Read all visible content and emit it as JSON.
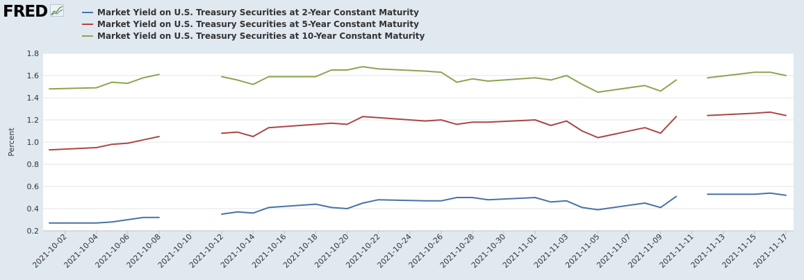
{
  "logo": {
    "text": "FRED",
    "icon": "fred-chart-icon"
  },
  "colors": {
    "background": "#e1e9f0",
    "plot": "#ffffff",
    "grid": "#e6e6e6"
  },
  "chart_data": {
    "type": "line",
    "ylabel": "Percent",
    "ylim": [
      0.2,
      1.8
    ],
    "yticks": [
      "0.2",
      "0.4",
      "0.6",
      "0.8",
      "1.0",
      "1.2",
      "1.4",
      "1.6",
      "1.8"
    ],
    "xlim": [
      "2021-10-01",
      "2021-11-17"
    ],
    "xticks": [
      "2021-10-02",
      "2021-10-04",
      "2021-10-06",
      "2021-10-08",
      "2021-10-10",
      "2021-10-12",
      "2021-10-14",
      "2021-10-16",
      "2021-10-18",
      "2021-10-20",
      "2021-10-22",
      "2021-10-24",
      "2021-10-26",
      "2021-10-28",
      "2021-10-30",
      "2021-11-01",
      "2021-11-03",
      "2021-11-05",
      "2021-11-07",
      "2021-11-09",
      "2021-11-11",
      "2021-11-13",
      "2021-11-15",
      "2021-11-17"
    ],
    "grid": true,
    "legend_position": "top",
    "x": [
      "2021-10-01",
      "2021-10-04",
      "2021-10-05",
      "2021-10-06",
      "2021-10-07",
      "2021-10-08",
      "2021-10-11",
      "2021-10-12",
      "2021-10-13",
      "2021-10-14",
      "2021-10-15",
      "2021-10-18",
      "2021-10-19",
      "2021-10-20",
      "2021-10-21",
      "2021-10-22",
      "2021-10-25",
      "2021-10-26",
      "2021-10-27",
      "2021-10-28",
      "2021-10-29",
      "2021-11-01",
      "2021-11-02",
      "2021-11-03",
      "2021-11-04",
      "2021-11-05",
      "2021-11-08",
      "2021-11-09",
      "2021-11-10",
      "2021-11-11",
      "2021-11-12",
      "2021-11-15",
      "2021-11-16",
      "2021-11-17"
    ],
    "series": [
      {
        "name": "Market Yield on U.S. Treasury Securities at 2-Year Constant Maturity",
        "color": "#4572a7",
        "values": [
          0.27,
          0.27,
          0.28,
          0.3,
          0.32,
          0.32,
          null,
          0.35,
          0.37,
          0.36,
          0.41,
          0.44,
          0.41,
          0.4,
          0.45,
          0.48,
          0.47,
          0.47,
          0.5,
          0.5,
          0.48,
          0.5,
          0.46,
          0.47,
          0.41,
          0.39,
          0.45,
          0.41,
          0.51,
          null,
          0.53,
          0.53,
          0.54,
          0.52
        ]
      },
      {
        "name": "Market Yield on U.S. Treasury Securities at 5-Year Constant Maturity",
        "color": "#aa4643",
        "values": [
          0.93,
          0.95,
          0.98,
          0.99,
          1.02,
          1.05,
          null,
          1.08,
          1.09,
          1.05,
          1.13,
          1.16,
          1.17,
          1.16,
          1.23,
          1.22,
          1.19,
          1.2,
          1.16,
          1.18,
          1.18,
          1.2,
          1.15,
          1.19,
          1.1,
          1.04,
          1.13,
          1.08,
          1.23,
          null,
          1.24,
          1.26,
          1.27,
          1.24
        ]
      },
      {
        "name": "Market Yield on U.S. Treasury Securities at 10-Year Constant Maturity",
        "color": "#89a54e",
        "values": [
          1.48,
          1.49,
          1.54,
          1.53,
          1.58,
          1.61,
          null,
          1.59,
          1.56,
          1.52,
          1.59,
          1.59,
          1.65,
          1.65,
          1.68,
          1.66,
          1.64,
          1.63,
          1.54,
          1.57,
          1.55,
          1.58,
          1.56,
          1.6,
          1.52,
          1.45,
          1.51,
          1.46,
          1.56,
          null,
          1.58,
          1.63,
          1.63,
          1.6
        ]
      }
    ]
  }
}
